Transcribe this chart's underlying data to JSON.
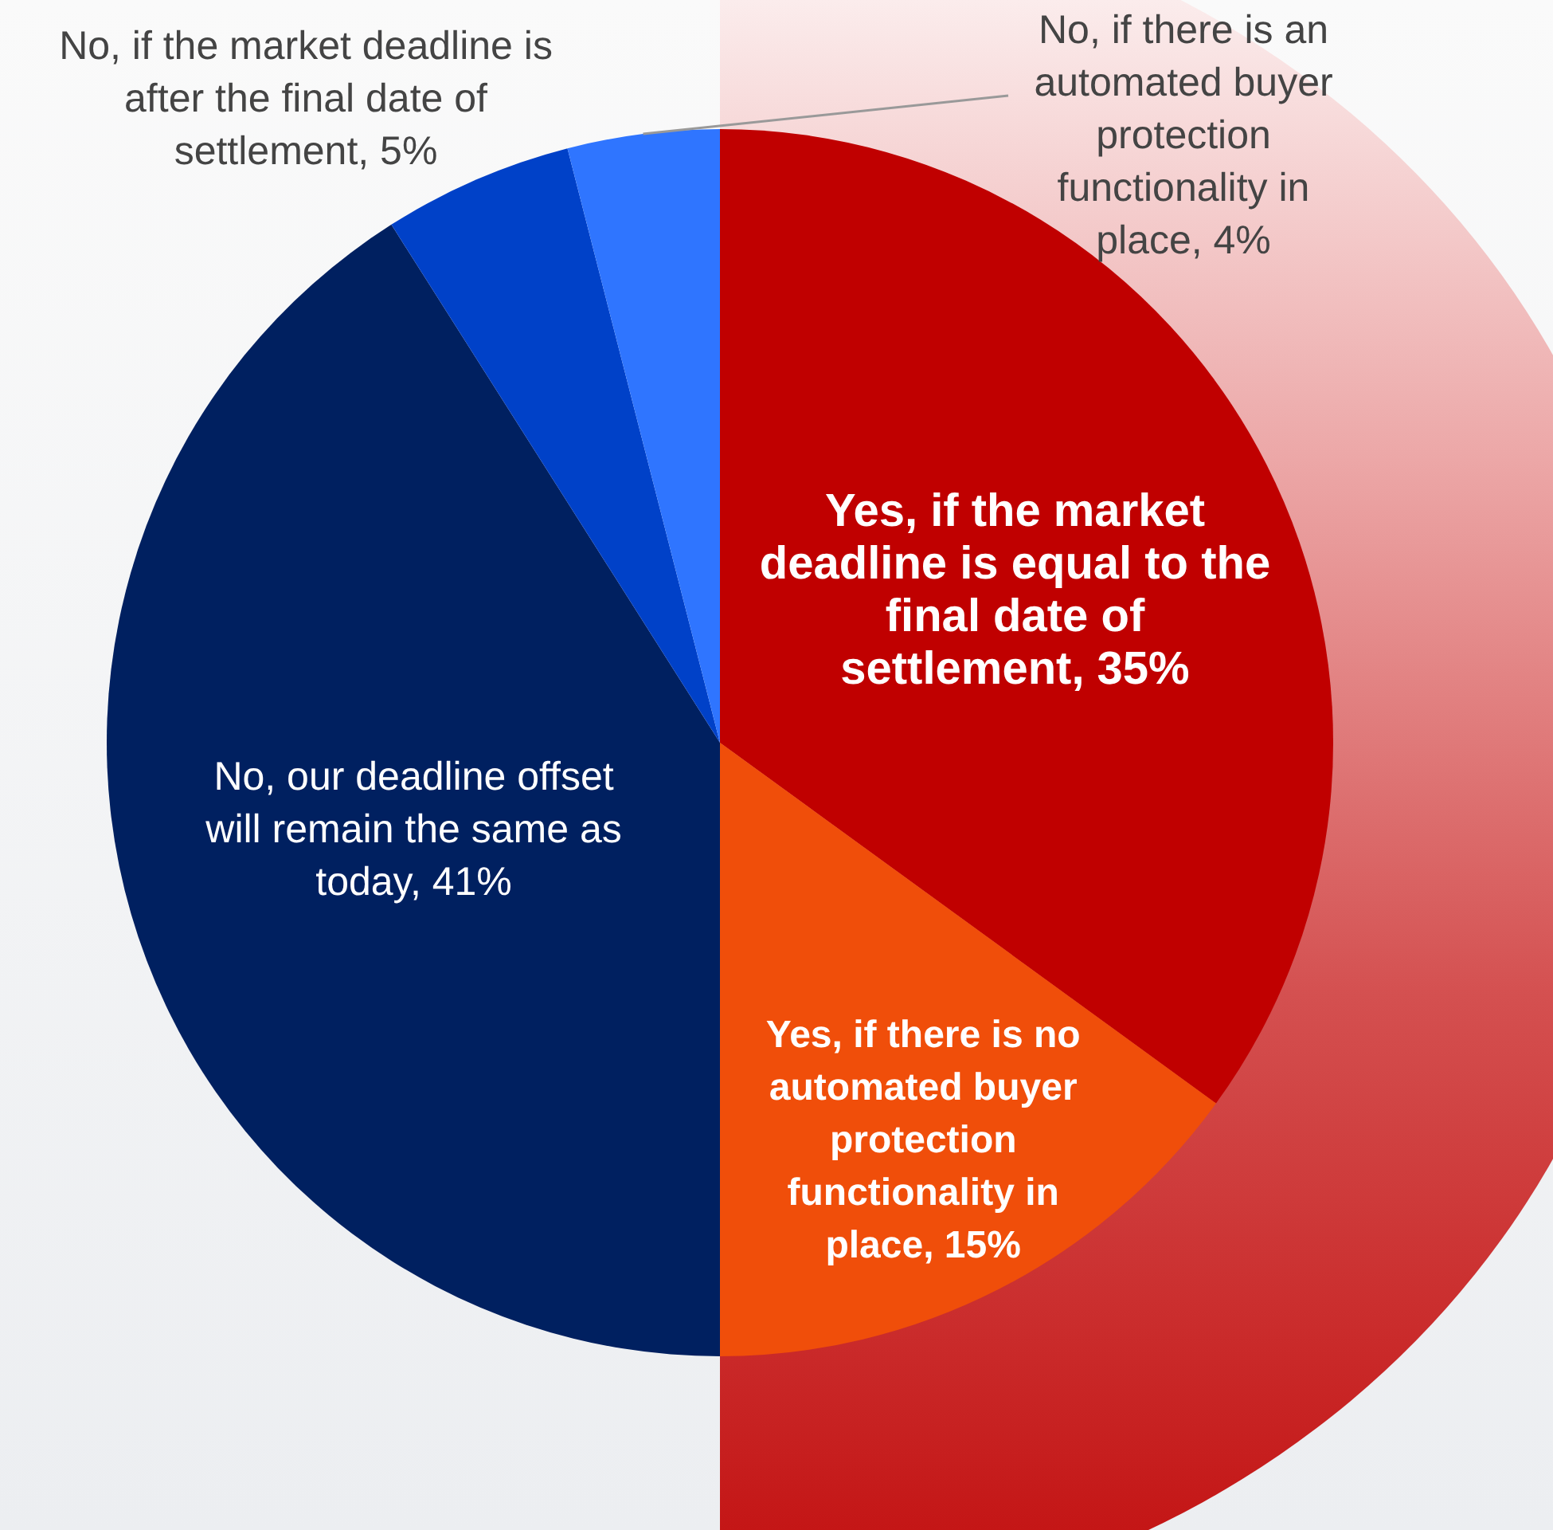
{
  "chart_data": {
    "type": "pie",
    "categories": [
      "Yes, if the market deadline is equal to the final date of settlement",
      "Yes, if there is no automated buyer protection functionality in place",
      "No, our deadline offset will remain the same as today",
      "No, if the market deadline is after the final date of settlement",
      "No, if there is an automated buyer protection functionality in place"
    ],
    "values": [
      35,
      15,
      41,
      5,
      4
    ],
    "value_labels": [
      "35%",
      "15%",
      "41%",
      "5%",
      "4%"
    ],
    "colors": [
      "#c00000",
      "#f04e0a",
      "#002060",
      "#0041c8",
      "#2f75ff"
    ],
    "legend": false
  }
}
